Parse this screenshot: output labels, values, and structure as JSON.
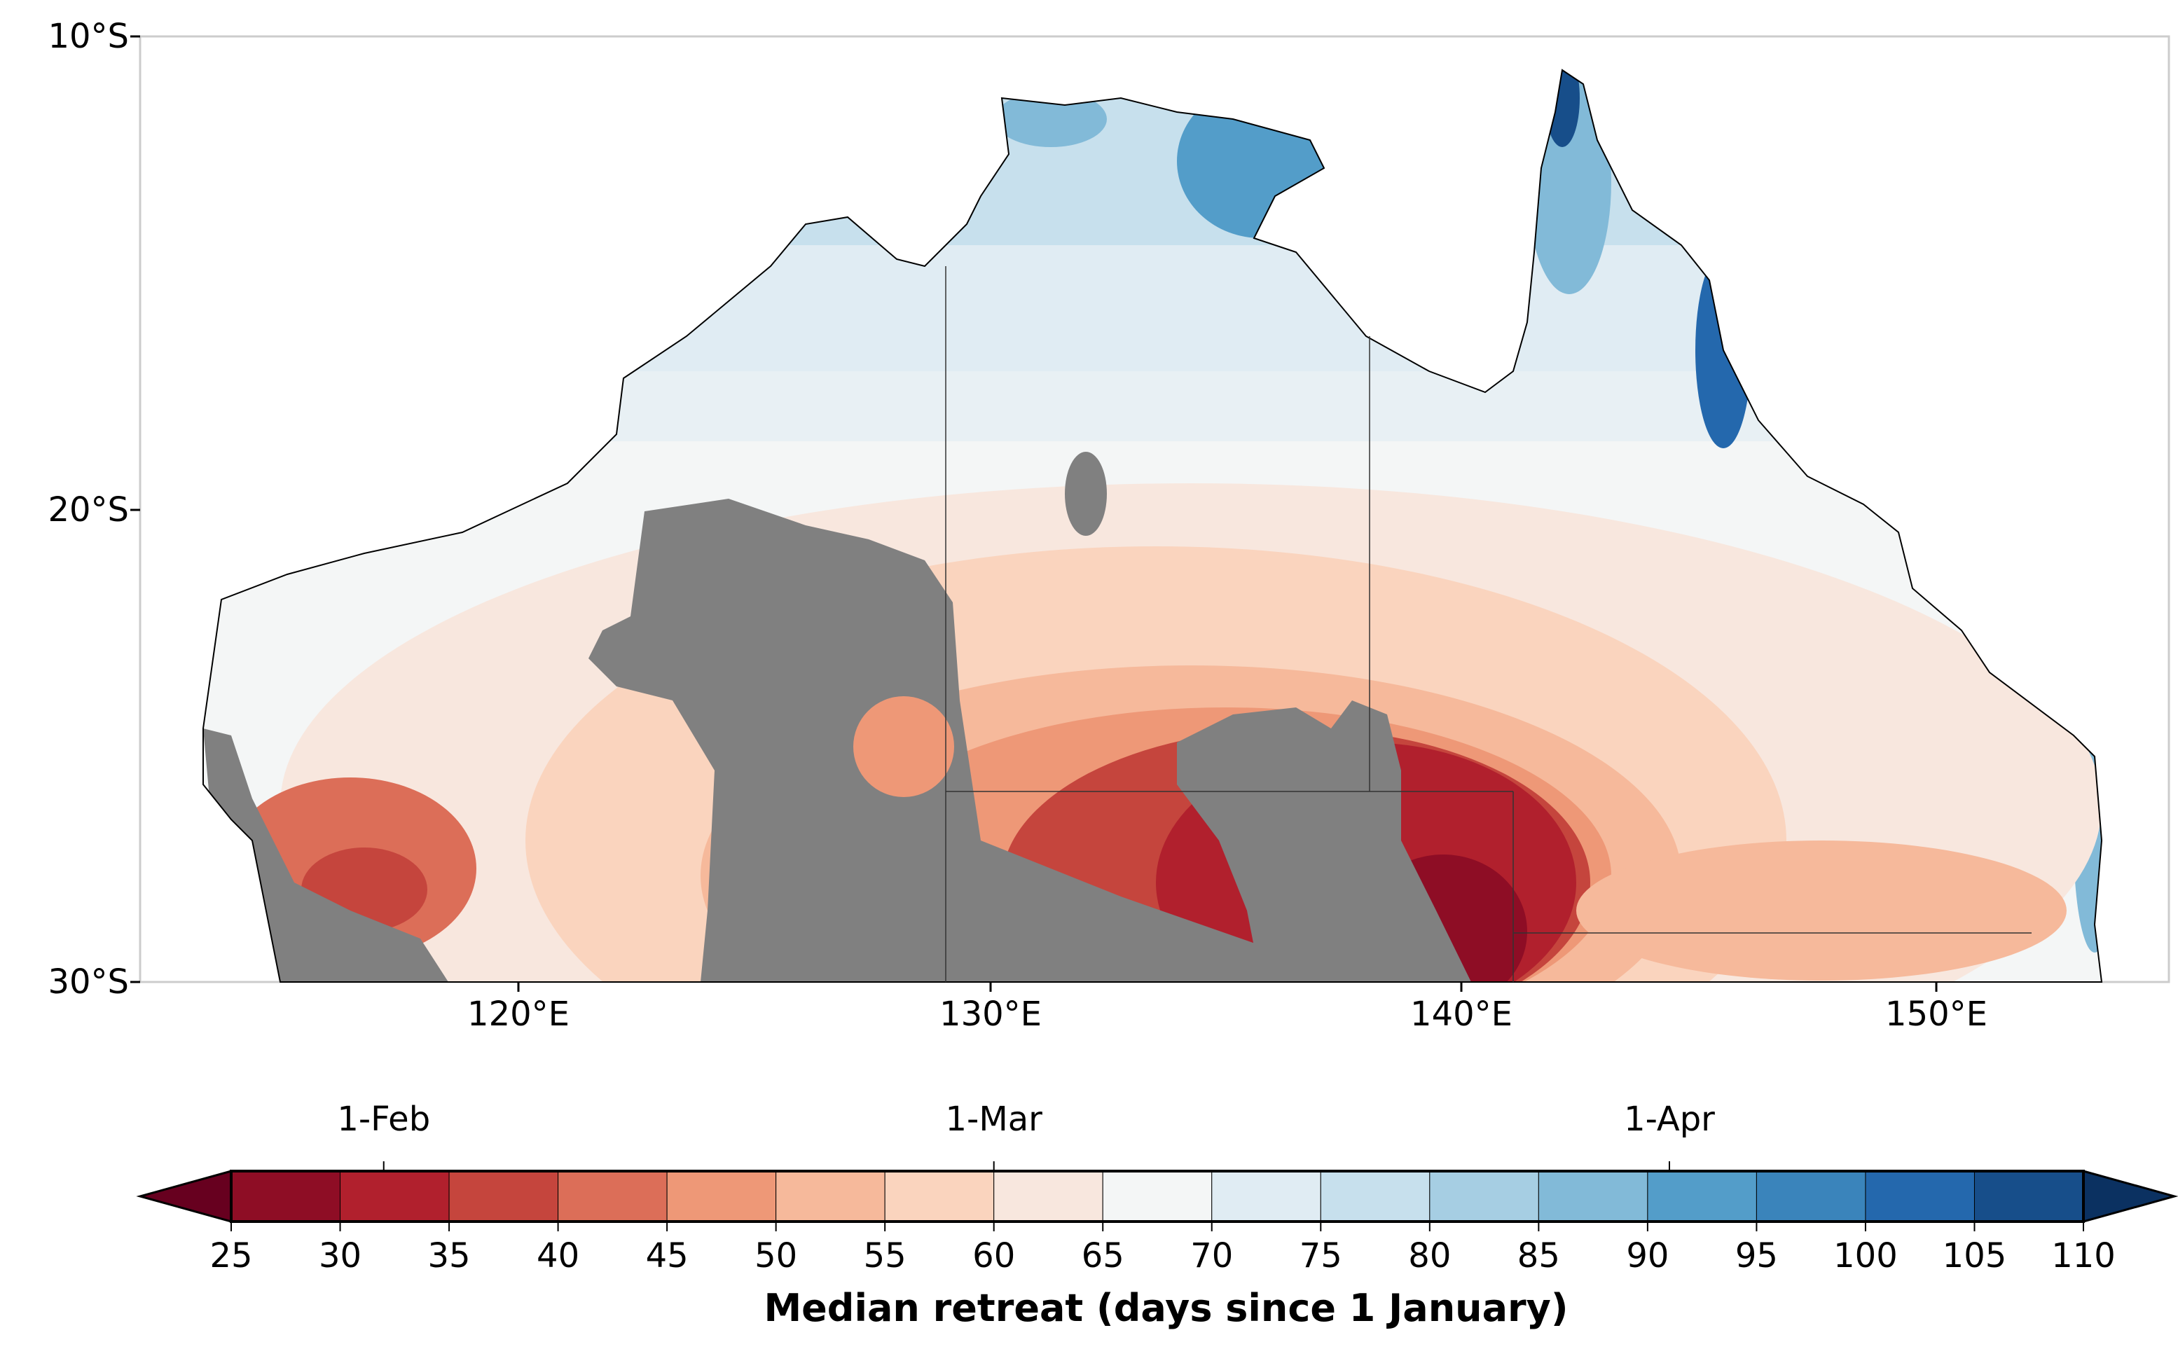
{
  "map": {
    "lat_ticks": [
      "10°S",
      "20°S",
      "30°S"
    ],
    "lon_ticks": [
      "120°E",
      "130°E",
      "140°E",
      "150°E"
    ],
    "extent": {
      "lon": [
        112,
        155
      ],
      "lat": [
        -30,
        -10
      ]
    },
    "masked_color": "#808080"
  },
  "colorbar": {
    "levels": [
      "25",
      "30",
      "35",
      "40",
      "45",
      "50",
      "55",
      "60",
      "65",
      "70",
      "75",
      "80",
      "85",
      "90",
      "95",
      "100",
      "105",
      "110"
    ],
    "colors": [
      "#8e0d25",
      "#b1202d",
      "#c5453d",
      "#dc6e58",
      "#ee9877",
      "#f6b99b",
      "#fad4be",
      "#f8e7de",
      "#f4f6f6",
      "#e0ecf3",
      "#c7e0ed",
      "#a6cee3",
      "#82bad8",
      "#539dc9",
      "#3a84bb",
      "#2468ad",
      "#174e8a"
    ],
    "extend_min_color": "#67001f",
    "extend_max_color": "#0b3161",
    "extend": "both",
    "date_ticks": [
      {
        "label": "1-Feb",
        "value": 32
      },
      {
        "label": "1-Mar",
        "value": 60
      },
      {
        "label": "1-Apr",
        "value": 91
      }
    ],
    "label": "Median retreat (days since 1 January)"
  }
}
